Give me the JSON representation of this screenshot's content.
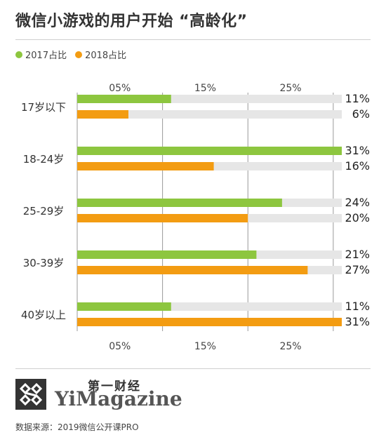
{
  "title": "微信小游戏的用户开始 “高龄化”",
  "legend": [
    {
      "label": "2017占比",
      "color": "#8dc63f"
    },
    {
      "label": "2018占比",
      "color": "#f39c12"
    }
  ],
  "chart_data": {
    "type": "bar",
    "orientation": "horizontal",
    "categories": [
      "17岁以下",
      "18-24岁",
      "25-29岁",
      "30-39岁",
      "40岁以上"
    ],
    "series": [
      {
        "name": "2017占比",
        "color": "#8dc63f",
        "values": [
          11,
          31,
          24,
          21,
          11
        ],
        "labels": [
          "11%",
          "31%",
          "24%",
          "21%",
          "11%"
        ]
      },
      {
        "name": "2018占比",
        "color": "#f39c12",
        "values": [
          6,
          16,
          20,
          27,
          31
        ],
        "labels": [
          "6%",
          "16%",
          "20%",
          "27%",
          "31%"
        ]
      }
    ],
    "x_ticks": [
      {
        "value": 5,
        "label": "05%"
      },
      {
        "value": 15,
        "label": "15%"
      },
      {
        "value": 25,
        "label": "25%"
      }
    ],
    "xlim": [
      0,
      31
    ],
    "track_color": "#e6e6e6",
    "gridlines": [
      0,
      10,
      20,
      30
    ]
  },
  "brand": {
    "cn": "第一财经",
    "en": "YiMagazine"
  },
  "source": "数据来源：2019微信公开课PRO"
}
